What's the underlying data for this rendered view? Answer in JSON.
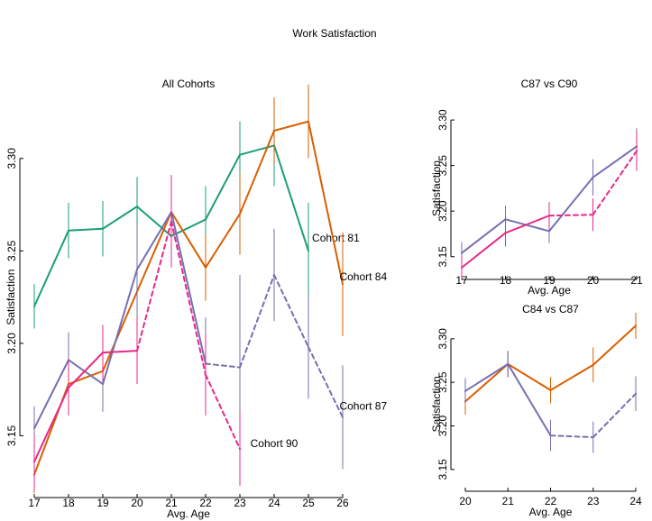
{
  "figure_title": "Work Satisfaction",
  "colors": {
    "Cohort 81": "#1b9e77",
    "Cohort 84": "#d95f02",
    "Cohort 87": "#7570b3",
    "Cohort 90": "#e7298a"
  },
  "chart_data": [
    {
      "type": "line",
      "title": "All Cohorts",
      "xlabel": "Avg. Age",
      "ylabel": "Satisfaction",
      "x": [
        17,
        18,
        19,
        20,
        21,
        22,
        23,
        24,
        25,
        26
      ],
      "xlim": [
        17,
        26
      ],
      "ylim": [
        3.12,
        3.335
      ],
      "yticks": [
        3.15,
        3.2,
        3.25,
        3.3
      ],
      "ytick_labels": [
        "3.15",
        "3.20",
        "3.25",
        "3.30"
      ],
      "series": [
        {
          "name": "Cohort 81",
          "x": [
            17,
            18,
            19,
            20,
            21,
            22,
            23,
            24,
            25
          ],
          "y": [
            3.22,
            3.261,
            3.262,
            3.274,
            3.258,
            3.267,
            3.302,
            3.307,
            3.25
          ],
          "err": [
            0.012,
            0.015,
            0.015,
            0.016,
            0.015,
            0.018,
            0.018,
            0.022,
            0.026
          ],
          "dashed_from_index": null,
          "label_x": 25.8,
          "label_y": 3.255
        },
        {
          "name": "Cohort 84",
          "x": [
            17,
            18,
            19,
            20,
            21,
            22,
            23,
            24,
            25,
            26
          ],
          "y": [
            3.129,
            3.178,
            3.185,
            3.228,
            3.271,
            3.241,
            3.27,
            3.315,
            3.32,
            3.232
          ],
          "err": [
            0.01,
            0.015,
            0.015,
            0.02,
            0.02,
            0.018,
            0.022,
            0.018,
            0.02,
            0.028
          ],
          "dashed_from_index": null,
          "label_x": 26.6,
          "label_y": 3.234
        },
        {
          "name": "Cohort 87",
          "x": [
            17,
            18,
            19,
            20,
            21,
            22,
            23,
            24,
            25,
            26
          ],
          "y": [
            3.154,
            3.191,
            3.178,
            3.24,
            3.271,
            3.189,
            3.187,
            3.237,
            3.198,
            3.16
          ],
          "err": [
            0.012,
            0.015,
            0.015,
            0.025,
            0.02,
            0.025,
            0.05,
            0.025,
            0.028,
            0.028
          ],
          "dashed_from_index": 5,
          "label_x": 26.6,
          "label_y": 3.164
        },
        {
          "name": "Cohort 90",
          "x": [
            17,
            18,
            19,
            20,
            21,
            22,
            23
          ],
          "y": [
            3.136,
            3.176,
            3.195,
            3.196,
            3.266,
            3.183,
            3.143
          ],
          "err": [
            0.015,
            0.015,
            0.015,
            0.018,
            0.025,
            0.022,
            0.02
          ],
          "dashed_from_index": 3,
          "label_x": 24.0,
          "label_y": 3.144
        }
      ]
    },
    {
      "type": "line",
      "title": "C87 vs C90",
      "xlabel": "Avg. Age",
      "ylabel": "Satisfaction",
      "x": [
        17,
        18,
        19,
        20,
        21
      ],
      "xlim": [
        17,
        21
      ],
      "ylim": [
        3.125,
        3.31
      ],
      "yticks": [
        3.15,
        3.2,
        3.25,
        3.3
      ],
      "ytick_labels": [
        "3.15",
        "3.20",
        "3.25",
        "3.30"
      ],
      "series": [
        {
          "name": "Cohort 87",
          "x": [
            17,
            18,
            19,
            20,
            21
          ],
          "y": [
            3.154,
            3.191,
            3.178,
            3.237,
            3.271
          ],
          "err": [
            0.012,
            0.015,
            0.013,
            0.02,
            0.02
          ],
          "dashed_from_index": null
        },
        {
          "name": "Cohort 90",
          "x": [
            17,
            18,
            19,
            20,
            21
          ],
          "y": [
            3.138,
            3.176,
            3.195,
            3.196,
            3.266
          ],
          "err": [
            0.012,
            0.015,
            0.015,
            0.018,
            0.022
          ],
          "dashed_from_index": 2
        }
      ]
    },
    {
      "type": "line",
      "title": "C84 vs C87",
      "xlabel": "Avg. Age",
      "ylabel": "Satisfaction",
      "x": [
        20,
        21,
        22,
        23,
        24
      ],
      "xlim": [
        20,
        24
      ],
      "ylim": [
        3.125,
        3.335
      ],
      "yticks": [
        3.15,
        3.2,
        3.25,
        3.3
      ],
      "ytick_labels": [
        "3.15",
        "3.20",
        "3.25",
        "3.30"
      ],
      "series": [
        {
          "name": "Cohort 84",
          "x": [
            20,
            21,
            22,
            23,
            24
          ],
          "y": [
            3.228,
            3.271,
            3.241,
            3.27,
            3.315
          ],
          "err": [
            0.015,
            0.015,
            0.015,
            0.02,
            0.015
          ],
          "dashed_from_index": null
        },
        {
          "name": "Cohort 87",
          "x": [
            20,
            21,
            22,
            23,
            24
          ],
          "y": [
            3.24,
            3.271,
            3.189,
            3.187,
            3.237
          ],
          "err": [
            0.015,
            0.015,
            0.018,
            0.018,
            0.02
          ],
          "dashed_from_index": 2
        }
      ]
    }
  ]
}
